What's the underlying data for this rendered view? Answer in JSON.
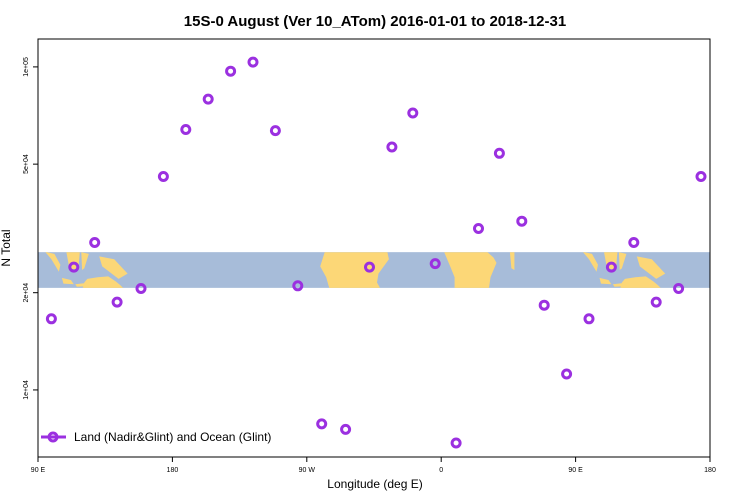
{
  "chart_data": {
    "type": "scatter",
    "title": "15S-0 August (Ver 10_ATom)   2016-01-01 to 2018-12-31",
    "xlabel": "Longitude (deg E)",
    "ylabel": "N Total",
    "x_ticks": [
      {
        "value": 90,
        "label": "90 E"
      },
      {
        "value": 180,
        "label": "180"
      },
      {
        "value": 270,
        "label": "90 W"
      },
      {
        "value": 360,
        "label": "0"
      },
      {
        "value": 450,
        "label": "90 E"
      },
      {
        "value": 540,
        "label": "180"
      }
    ],
    "y_ticks": [
      {
        "value": 10000,
        "label": "1e+04"
      },
      {
        "value": 20000,
        "label": "2e+04"
      },
      {
        "value": 50000,
        "label": "5e+04"
      },
      {
        "value": 100000,
        "label": "1e+05"
      }
    ],
    "xlim": [
      90,
      540
    ],
    "ylim": [
      6200,
      122000
    ],
    "y_scale": "log",
    "map_band": {
      "ymin": 20700,
      "ymax": 26700,
      "lat_range": "15S-0"
    },
    "legend": {
      "position": "bottom-left",
      "entries": [
        "Land (Nadir&Glint) and Ocean (Glint)"
      ]
    },
    "series": [
      {
        "name": "Land (Nadir&Glint) and Ocean (Glint)",
        "color": "#9b30e0",
        "points": [
          [
            99,
            16600
          ],
          [
            114,
            24000
          ],
          [
            128,
            28600
          ],
          [
            143,
            18700
          ],
          [
            159,
            20600
          ],
          [
            174,
            45800
          ],
          [
            189,
            64000
          ],
          [
            204,
            79500
          ],
          [
            219,
            97000
          ],
          [
            234,
            103500
          ],
          [
            249,
            63500
          ],
          [
            264,
            21000
          ],
          [
            280,
            7850
          ],
          [
            296,
            7550
          ],
          [
            312,
            24000
          ],
          [
            327,
            56500
          ],
          [
            341,
            72000
          ],
          [
            356,
            24600
          ],
          [
            370,
            6850
          ],
          [
            385,
            31600
          ],
          [
            399,
            54000
          ],
          [
            414,
            33300
          ],
          [
            429,
            18300
          ],
          [
            444,
            11200
          ],
          [
            459,
            16600
          ],
          [
            474,
            24000
          ],
          [
            489,
            28600
          ],
          [
            504,
            18700
          ],
          [
            519,
            20600
          ],
          [
            534,
            45800
          ]
        ]
      }
    ]
  }
}
